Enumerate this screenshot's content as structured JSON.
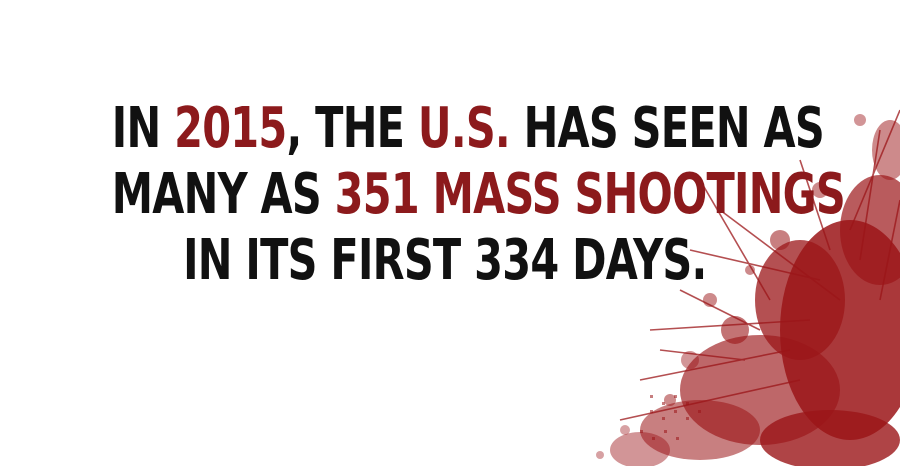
{
  "headline": {
    "line1": {
      "pre": "IN ",
      "year": "2015",
      "mid": ", THE ",
      "country": "U.S.",
      "post": " HAS SEEN AS"
    },
    "line2": {
      "pre": "MANY AS ",
      "highlight": "351 MASS SHOOTINGS"
    },
    "line3": {
      "text": "IN ITS FIRST 334 DAYS."
    }
  },
  "colors": {
    "background": "#ffffff",
    "text": "#111111",
    "highlight": "#8c1a1c",
    "splatter": "#9b1518"
  }
}
